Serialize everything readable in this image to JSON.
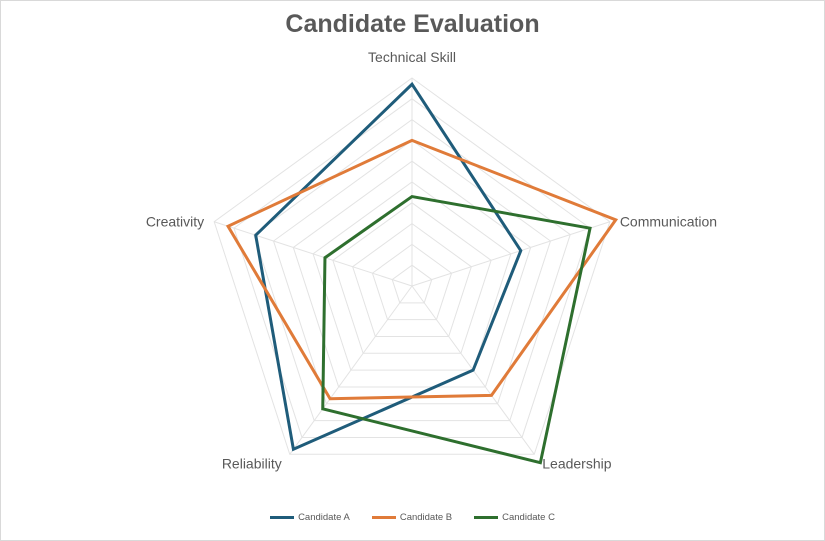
{
  "chart_data": {
    "type": "radar",
    "title": "Candidate Evaluation",
    "categories": [
      "Technical Skill",
      "Communication",
      "Leadership",
      "Reliability",
      "Creativity"
    ],
    "rlim": [
      0,
      10
    ],
    "ring_count": 10,
    "grid": true,
    "legend_position": "bottom",
    "series": [
      {
        "name": "Candidate A",
        "color": "#1f5c7a",
        "values": [
          9.7,
          5.5,
          5.0,
          9.7,
          7.9
        ]
      },
      {
        "name": "Candidate B",
        "color": "#e07b39",
        "values": [
          7.0,
          10.3,
          6.5,
          6.7,
          9.3
        ]
      },
      {
        "name": "Candidate C",
        "color": "#2e6f2e",
        "values": [
          4.3,
          9.0,
          10.5,
          7.3,
          4.4
        ]
      }
    ]
  }
}
